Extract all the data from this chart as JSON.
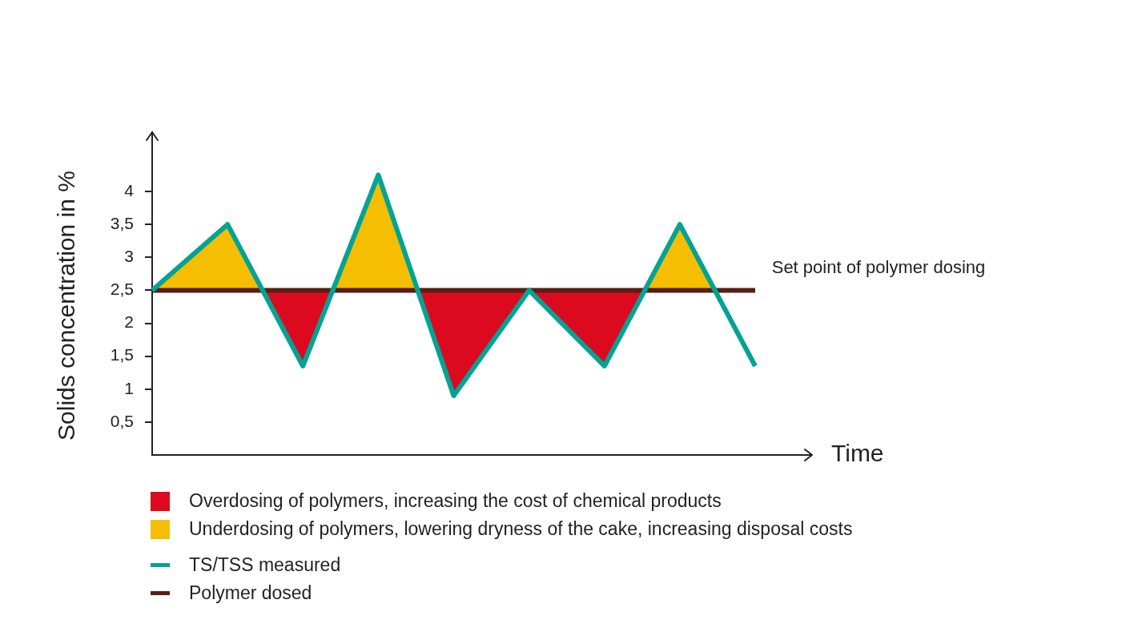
{
  "chart_data": {
    "type": "line",
    "xlabel": "Time",
    "ylabel": "Solids concentration in %",
    "categories": [
      null,
      null,
      null,
      null,
      null,
      null,
      null,
      null,
      null
    ],
    "ylim": [
      0,
      4.9
    ],
    "yticks": [
      {
        "value": 0.5,
        "label": "0,5"
      },
      {
        "value": 1,
        "label": "1"
      },
      {
        "value": 1.5,
        "label": "1,5"
      },
      {
        "value": 2,
        "label": "2"
      },
      {
        "value": 2.5,
        "label": "2,5"
      },
      {
        "value": 3,
        "label": "3"
      },
      {
        "value": 3.5,
        "label": "3,5"
      },
      {
        "value": 4,
        "label": "4"
      }
    ],
    "grid": false,
    "legend": "bottom",
    "marker": "none",
    "series": [
      {
        "name": "Overdosing of polymers, increasing the cost of chemical products",
        "type": "area",
        "color": "#dc0a1e",
        "values": [
          2.5,
          2.5,
          1.35,
          2.5,
          0.9,
          2.5,
          1.35,
          2.5,
          2.5
        ]
      },
      {
        "name": "Underdosing of polymers, lowering dryness of the cake, increasing disposal costs",
        "type": "area",
        "color": "#f5be00",
        "values": [
          2.5,
          3.5,
          2.5,
          4.25,
          2.5,
          2.5,
          2.5,
          3.5,
          2.5
        ]
      },
      {
        "name": "TS/TSS measured",
        "type": "line",
        "color": "#00a394",
        "values": [
          2.5,
          3.5,
          1.35,
          4.25,
          0.9,
          2.5,
          1.35,
          3.5,
          1.35
        ]
      },
      {
        "name": "Polymer dosed",
        "type": "line",
        "color": "#5a1e14",
        "values": [
          2.5,
          2.5,
          2.5,
          2.5,
          2.5,
          2.5,
          2.5,
          2.5,
          2.5
        ]
      }
    ],
    "annotations": [
      "Set point of polymer dosing"
    ]
  }
}
